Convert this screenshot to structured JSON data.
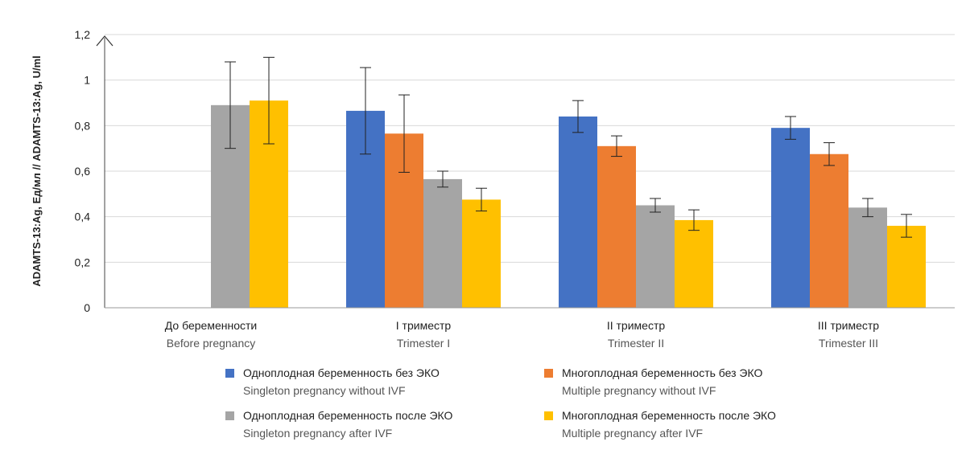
{
  "chart_data": {
    "type": "bar",
    "ylabel": "ADAMTS-13:Ag, Ед/мл // ADAMTS-13:Ag, U/ml",
    "ylim": [
      0,
      1.2
    ],
    "yticks": [
      "0",
      "0,2",
      "0,4",
      "0,6",
      "0,8",
      "1",
      "1,2"
    ],
    "grid": true,
    "legend_position": "bottom",
    "categories": [
      {
        "ru": "До беременности",
        "en": "Before pregnancy"
      },
      {
        "ru": "I триместр",
        "en": "Trimester I"
      },
      {
        "ru": "II триместр",
        "en": "Trimester II"
      },
      {
        "ru": "III триместр",
        "en": "Trimester III"
      }
    ],
    "series": [
      {
        "name_ru": "Одноплодная беременность без ЭКО",
        "name_en": "Singleton pregnancy without IVF",
        "color": "#4472C4",
        "values": [
          null,
          0.865,
          0.84,
          0.79
        ],
        "errors": [
          null,
          0.19,
          0.07,
          0.05
        ]
      },
      {
        "name_ru": "Многоплодная беременность без ЭКО",
        "name_en": "Multiple pregnancy without IVF",
        "color": "#ED7D31",
        "values": [
          null,
          0.765,
          0.71,
          0.675
        ],
        "errors": [
          null,
          0.17,
          0.045,
          0.05
        ]
      },
      {
        "name_ru": "Одноплодная беременность после ЭКО",
        "name_en": "Singleton pregnancy after IVF",
        "color": "#A5A5A5",
        "values": [
          0.89,
          0.565,
          0.45,
          0.44
        ],
        "errors": [
          0.19,
          0.035,
          0.03,
          0.04
        ]
      },
      {
        "name_ru": "Многоплодная беременность после ЭКО",
        "name_en": "Multiple pregnancy after IVF",
        "color": "#FFC000",
        "values": [
          0.91,
          0.475,
          0.385,
          0.36
        ],
        "errors": [
          0.19,
          0.05,
          0.045,
          0.05
        ]
      }
    ]
  }
}
